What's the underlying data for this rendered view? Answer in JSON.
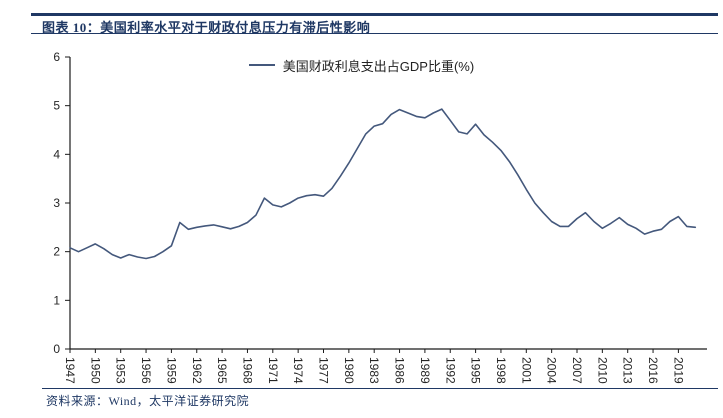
{
  "report": {
    "title": "图表 10：美国利率水平对于财政付息压力有滞后性影响",
    "source": "资料来源：Wind，太平洋证券研究院"
  },
  "theme": {
    "accent_navy": "#1F3864",
    "series_color": "#44587C",
    "axis_color": "#1A1A1A",
    "tick_text_color": "#262626",
    "background": "#FFFFFF"
  },
  "chart_data": {
    "type": "line",
    "title": "",
    "xlabel": "",
    "ylabel": "",
    "grid": false,
    "legend_position": "top-center",
    "ylim": [
      0,
      6
    ],
    "yticks": [
      0,
      1,
      2,
      3,
      4,
      5,
      6
    ],
    "xtick_labels": [
      "1947",
      "1950",
      "1953",
      "1956",
      "1959",
      "1962",
      "1965",
      "1968",
      "1971",
      "1974",
      "1977",
      "1980",
      "1983",
      "1986",
      "1989",
      "1992",
      "1995",
      "1998",
      "2001",
      "2004",
      "2007",
      "2010",
      "2013",
      "2016",
      "2019"
    ],
    "x": [
      1947,
      1948,
      1949,
      1950,
      1951,
      1952,
      1953,
      1954,
      1955,
      1956,
      1957,
      1958,
      1959,
      1960,
      1961,
      1962,
      1963,
      1964,
      1965,
      1966,
      1967,
      1968,
      1969,
      1970,
      1971,
      1972,
      1973,
      1974,
      1975,
      1976,
      1977,
      1978,
      1979,
      1980,
      1981,
      1982,
      1983,
      1984,
      1985,
      1986,
      1987,
      1988,
      1989,
      1990,
      1991,
      1992,
      1993,
      1994,
      1995,
      1996,
      1997,
      1998,
      1999,
      2000,
      2001,
      2002,
      2003,
      2004,
      2005,
      2006,
      2007,
      2008,
      2009,
      2010,
      2011,
      2012,
      2013,
      2014,
      2015,
      2016,
      2017,
      2018,
      2019,
      2020,
      2021
    ],
    "series": [
      {
        "name": "美国财政利息支出占GDP比重(%)",
        "color": "#44587C",
        "values": [
          2.08,
          2.0,
          2.08,
          2.16,
          2.06,
          1.94,
          1.87,
          1.94,
          1.89,
          1.86,
          1.9,
          2.0,
          2.12,
          2.6,
          2.46,
          2.5,
          2.53,
          2.55,
          2.51,
          2.47,
          2.52,
          2.6,
          2.75,
          3.1,
          2.96,
          2.92,
          3.0,
          3.1,
          3.15,
          3.17,
          3.14,
          3.3,
          3.55,
          3.82,
          4.12,
          4.42,
          4.58,
          4.63,
          4.82,
          4.92,
          4.85,
          4.78,
          4.75,
          4.85,
          4.93,
          4.7,
          4.46,
          4.42,
          4.62,
          4.4,
          4.25,
          4.08,
          3.85,
          3.58,
          3.28,
          3.0,
          2.8,
          2.62,
          2.52,
          2.52,
          2.68,
          2.8,
          2.62,
          2.48,
          2.58,
          2.7,
          2.56,
          2.48,
          2.36,
          2.42,
          2.46,
          2.62,
          2.72,
          2.52,
          2.5
        ]
      }
    ]
  }
}
